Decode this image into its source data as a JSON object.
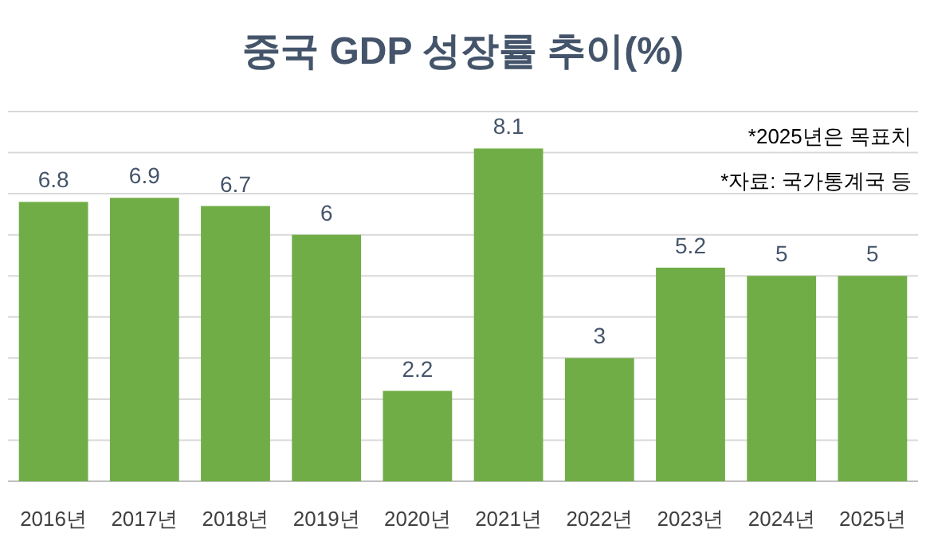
{
  "chart_data": {
    "type": "bar",
    "title": "중국 GDP 성장률 추이(%)",
    "categories": [
      "2016년",
      "2017년",
      "2018년",
      "2019년",
      "2020년",
      "2021년",
      "2022년",
      "2023년",
      "2024년",
      "2025년"
    ],
    "values": [
      6.8,
      6.9,
      6.7,
      6,
      2.2,
      8.1,
      3,
      5.2,
      5,
      5
    ],
    "color": "#70ad47",
    "ylim": [
      0,
      9
    ],
    "yticks": [
      {
        "value": 0,
        "label": null
      },
      {
        "value": 1,
        "label": null
      },
      {
        "value": 2,
        "label": null
      },
      {
        "value": 3,
        "label": null
      },
      {
        "value": 4,
        "label": null
      },
      {
        "value": 5,
        "label": null
      },
      {
        "value": 6,
        "label": null
      },
      {
        "value": 7,
        "label": null
      },
      {
        "value": 8,
        "label": null
      },
      {
        "value": 9,
        "label": null
      }
    ],
    "grid": "y",
    "data_labels": true,
    "tick_labels": "x",
    "annotations": [
      "*2025년은 목표치",
      "*자료: 국가통계국 등"
    ]
  }
}
